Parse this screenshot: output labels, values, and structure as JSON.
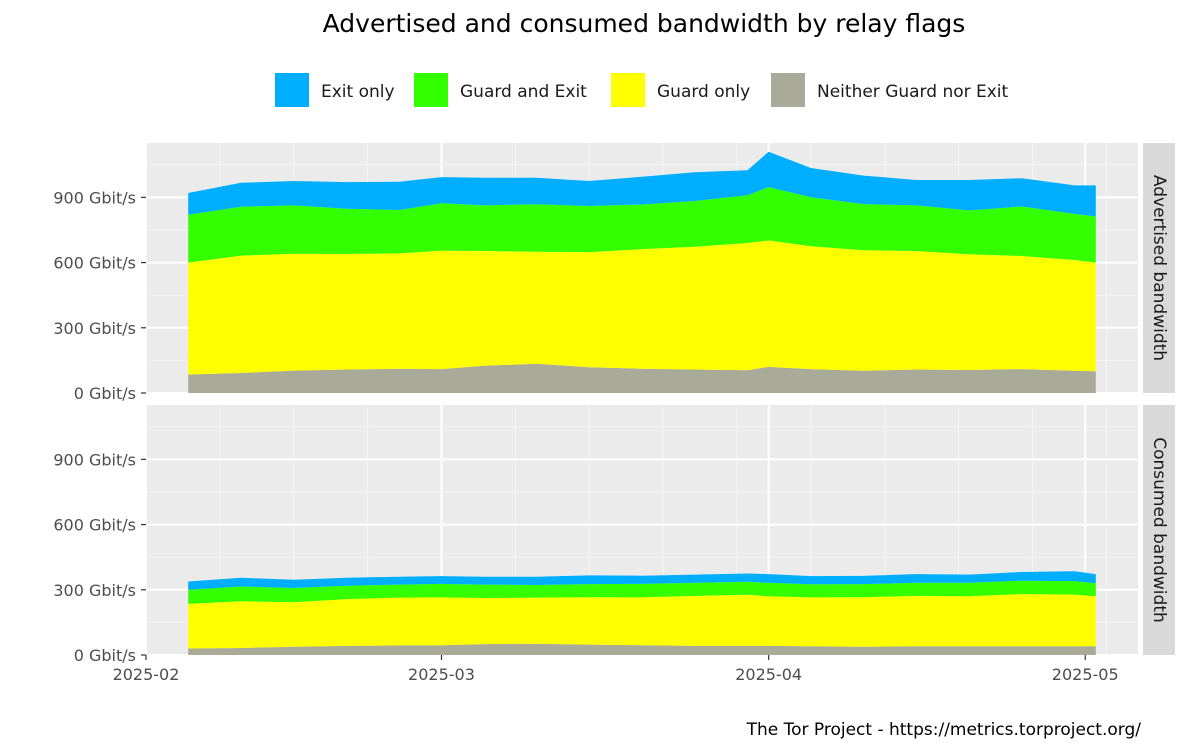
{
  "title": "Advertised and consumed bandwidth by relay flags",
  "caption": "The Tor Project - https://metrics.torproject.org/",
  "colors": {
    "exit_only": "#00aeff",
    "guard_and_exit": "#33ff00",
    "guard_only": "#ffff00",
    "neither": "#aaaa99",
    "panel_bg": "#ebebeb",
    "strip_bg": "#d9d9d9"
  },
  "legend": [
    {
      "key": "exit_only",
      "label": "Exit only"
    },
    {
      "key": "guard_and_exit",
      "label": "Guard and Exit"
    },
    {
      "key": "guard_only",
      "label": "Guard only"
    },
    {
      "key": "neither",
      "label": "Neither Guard nor Exit"
    }
  ],
  "chart_data": {
    "type": "area",
    "stacked": true,
    "legend_position": "top",
    "grid": true,
    "x_unit": "date",
    "y_unit": "Gbit/s",
    "xlim": [
      "2025-02-01",
      "2025-05-06"
    ],
    "ylim": [
      0,
      1150
    ],
    "x_ticks": [
      "2025-02",
      "2025-03",
      "2025-04",
      "2025-05"
    ],
    "y_ticks": [
      "0 Gbit/s",
      "300 Gbit/s",
      "600 Gbit/s",
      "900 Gbit/s"
    ],
    "x": [
      "2025-02-05",
      "2025-02-10",
      "2025-02-15",
      "2025-02-20",
      "2025-02-25",
      "2025-03-01",
      "2025-03-05",
      "2025-03-10",
      "2025-03-15",
      "2025-03-20",
      "2025-03-25",
      "2025-03-30",
      "2025-04-01",
      "2025-04-05",
      "2025-04-10",
      "2025-04-15",
      "2025-04-20",
      "2025-04-25",
      "2025-04-30",
      "2025-05-02"
    ],
    "facets": [
      {
        "name": "Advertised bandwidth",
        "series": [
          {
            "name": "Neither Guard nor Exit",
            "key": "neither",
            "values": [
              85,
              92,
              103,
              108,
              112,
              110,
              125,
              135,
              118,
              112,
              108,
              105,
              120,
              110,
              102,
              108,
              106,
              110,
              102,
              100
            ]
          },
          {
            "name": "Guard only",
            "key": "guard_only",
            "values": [
              515,
              540,
              538,
              532,
              530,
              545,
              528,
              515,
              530,
              550,
              565,
              585,
              582,
              565,
              555,
              545,
              532,
              520,
              510,
              500
            ]
          },
          {
            "name": "Guard and Exit",
            "key": "guard_and_exit",
            "values": [
              220,
              225,
              222,
              208,
              200,
              218,
              210,
              218,
              212,
              205,
              210,
              220,
              245,
              225,
              212,
              210,
              202,
              228,
              212,
              212
            ]
          },
          {
            "name": "Exit only",
            "key": "exit_only",
            "values": [
              100,
              110,
              112,
              122,
              130,
              120,
              127,
              122,
              115,
              128,
              132,
              115,
              163,
              135,
              131,
              117,
              140,
              130,
              131,
              143
            ]
          }
        ]
      },
      {
        "name": "Consumed bandwidth",
        "series": [
          {
            "name": "Neither Guard nor Exit",
            "key": "neither",
            "values": [
              30,
              32,
              38,
              42,
              44,
              45,
              50,
              52,
              48,
              45,
              42,
              42,
              42,
              40,
              38,
              40,
              40,
              40,
              40,
              40
            ]
          },
          {
            "name": "Guard only",
            "key": "guard_only",
            "values": [
              205,
              215,
              205,
              215,
              220,
              220,
              212,
              212,
              218,
              220,
              230,
              235,
              228,
              225,
              228,
              232,
              230,
              240,
              238,
              230
            ]
          },
          {
            "name": "Guard and Exit",
            "key": "guard_and_exit",
            "values": [
              65,
              68,
              65,
              62,
              60,
              62,
              62,
              58,
              60,
              62,
              60,
              60,
              62,
              60,
              60,
              60,
              62,
              62,
              62,
              60
            ]
          },
          {
            "name": "Exit only",
            "key": "exit_only",
            "values": [
              38,
              40,
              38,
              36,
              36,
              36,
              36,
              38,
              40,
              38,
              38,
              38,
              40,
              38,
              38,
              40,
              38,
              40,
              45,
              42
            ]
          }
        ]
      }
    ]
  }
}
